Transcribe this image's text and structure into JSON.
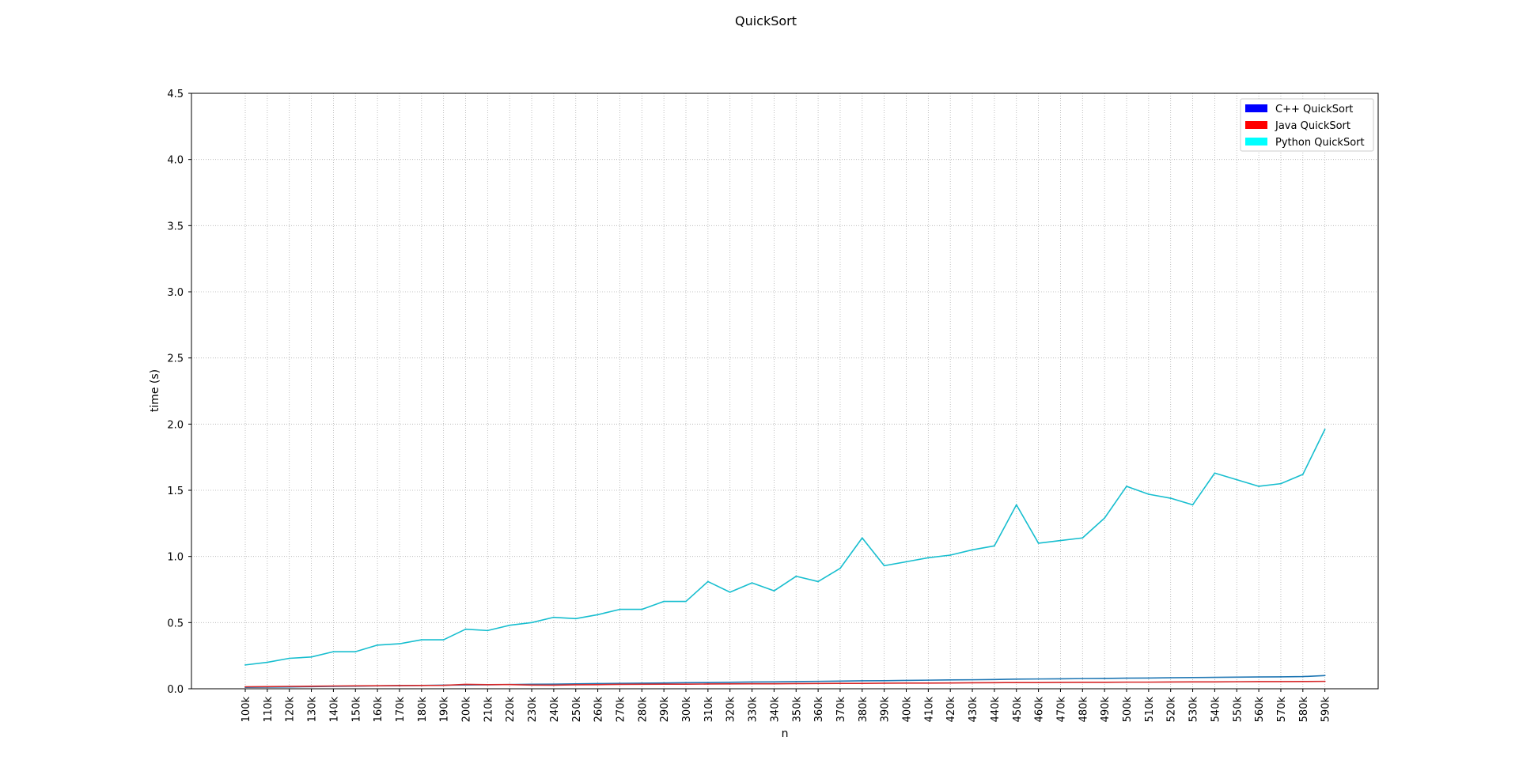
{
  "chart_data": {
    "type": "line",
    "title": "QuickSort",
    "xlabel": "n",
    "ylabel": "time (s)",
    "ylim": [
      0,
      4.5
    ],
    "yticks": [
      "0.0",
      "0.5",
      "1.0",
      "1.5",
      "2.0",
      "2.5",
      "3.0",
      "3.5",
      "4.0",
      "4.5"
    ],
    "grid": true,
    "legend_position": "top-right",
    "categories": [
      "100k",
      "110k",
      "120k",
      "130k",
      "140k",
      "150k",
      "160k",
      "170k",
      "180k",
      "190k",
      "200k",
      "210k",
      "220k",
      "230k",
      "240k",
      "250k",
      "260k",
      "270k",
      "280k",
      "290k",
      "300k",
      "310k",
      "320k",
      "330k",
      "340k",
      "350k",
      "360k",
      "370k",
      "380k",
      "390k",
      "400k",
      "410k",
      "420k",
      "430k",
      "440k",
      "450k",
      "460k",
      "470k",
      "480k",
      "490k",
      "500k",
      "510k",
      "520k",
      "530k",
      "540k",
      "550k",
      "560k",
      "570k",
      "580k",
      "590k"
    ],
    "series": [
      {
        "name": "C++ QuickSort",
        "legend_color": "#0000ff",
        "color": "#1f77b4",
        "values": [
          0.011,
          0.012,
          0.014,
          0.016,
          0.018,
          0.02,
          0.022,
          0.023,
          0.025,
          0.027,
          0.029,
          0.03,
          0.032,
          0.034,
          0.035,
          0.037,
          0.039,
          0.041,
          0.042,
          0.044,
          0.046,
          0.047,
          0.049,
          0.051,
          0.052,
          0.054,
          0.056,
          0.058,
          0.06,
          0.061,
          0.063,
          0.065,
          0.067,
          0.068,
          0.07,
          0.073,
          0.074,
          0.075,
          0.077,
          0.078,
          0.08,
          0.081,
          0.083,
          0.085,
          0.086,
          0.088,
          0.089,
          0.09,
          0.092,
          0.1
        ]
      },
      {
        "name": "Java QuickSort",
        "legend_color": "#ff0000",
        "color": "#d62728",
        "values": [
          0.015,
          0.016,
          0.018,
          0.019,
          0.021,
          0.022,
          0.023,
          0.024,
          0.025,
          0.026,
          0.033,
          0.031,
          0.032,
          0.028,
          0.027,
          0.03,
          0.031,
          0.033,
          0.034,
          0.035,
          0.035,
          0.036,
          0.037,
          0.038,
          0.038,
          0.039,
          0.04,
          0.041,
          0.041,
          0.042,
          0.043,
          0.043,
          0.044,
          0.045,
          0.046,
          0.047,
          0.047,
          0.048,
          0.049,
          0.049,
          0.05,
          0.05,
          0.051,
          0.052,
          0.052,
          0.053,
          0.054,
          0.054,
          0.055,
          0.056
        ]
      },
      {
        "name": "Python QuickSort",
        "legend_color": "#00ffff",
        "color": "#17becf",
        "values": [
          0.18,
          0.2,
          0.23,
          0.24,
          0.28,
          0.28,
          0.33,
          0.34,
          0.37,
          0.37,
          0.45,
          0.44,
          0.48,
          0.5,
          0.54,
          0.53,
          0.56,
          0.6,
          0.6,
          0.66,
          0.66,
          0.81,
          0.73,
          0.8,
          0.74,
          0.85,
          0.81,
          0.91,
          1.14,
          0.93,
          0.96,
          0.99,
          1.01,
          1.05,
          1.08,
          1.39,
          1.1,
          1.12,
          1.14,
          1.29,
          1.53,
          1.47,
          1.44,
          1.39,
          1.63,
          1.58,
          1.53,
          1.55,
          1.62,
          1.96
        ]
      }
    ]
  }
}
